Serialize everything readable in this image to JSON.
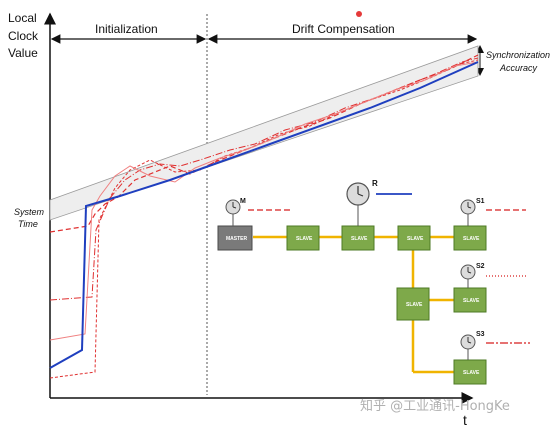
{
  "diagram": {
    "y_axis_label": [
      "Local",
      "Clock",
      "Value"
    ],
    "x_axis_label": "t",
    "phase_initialization": "Initialization",
    "phase_drift": "Drift Compensation",
    "sync_accuracy": [
      "Synchronization",
      "Accuracy"
    ],
    "system_time": [
      "System",
      "Time"
    ],
    "clock_labels": {
      "master": "M",
      "reference": "R",
      "s1": "S1",
      "s2": "S2",
      "s3": "S3"
    },
    "nodes": {
      "master": "MASTER",
      "slave_1": "SLAVE",
      "slave_2": "SLAVE",
      "slave_3": "SLAVE",
      "slave_4": "SLAVE",
      "slave_5": "SLAVE",
      "slave_6": "SLAVE",
      "slave_7": "SLAVE"
    },
    "watermark": "知乎 @工业通讯-HongKe",
    "colors": {
      "master_clock": "#d81e1e",
      "reference_clock": "#1f3fbf",
      "slave_node": "#7ea94a",
      "master_node": "#7a7a7a",
      "bus": "#f0b400",
      "accuracy_band": "#9a9a9a"
    }
  }
}
